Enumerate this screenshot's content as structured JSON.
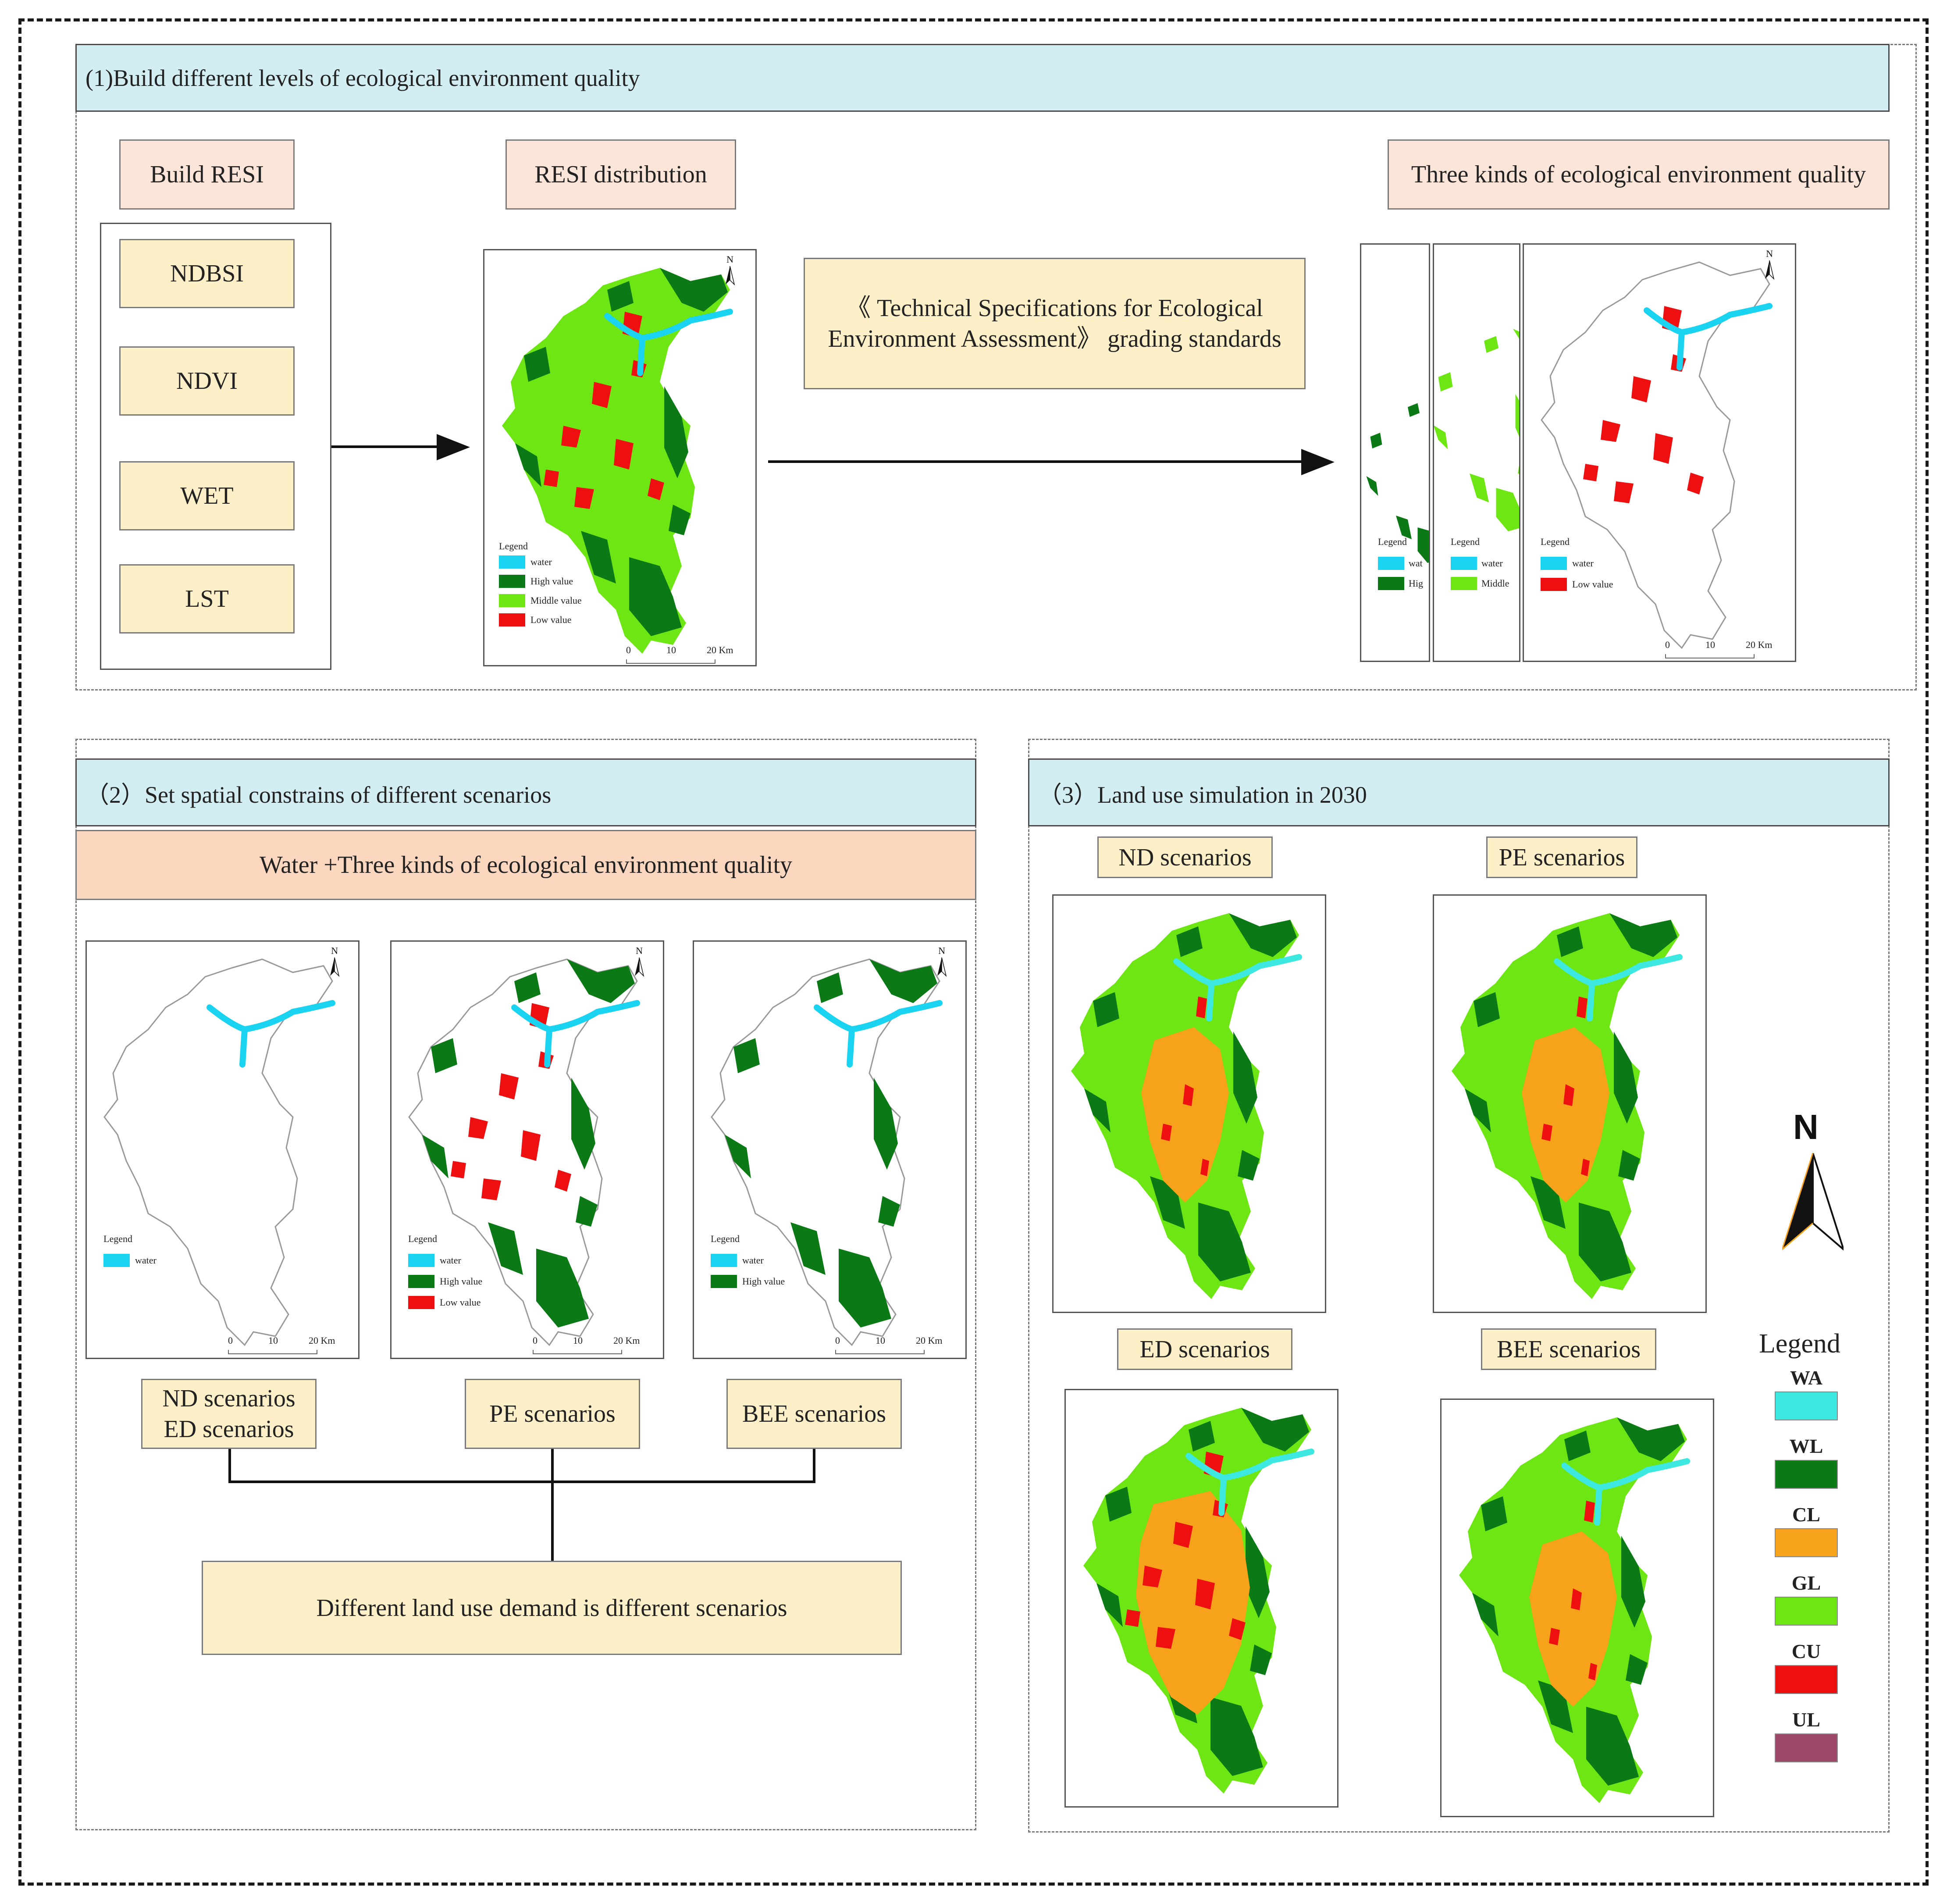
{
  "section1": {
    "title": "(1)Build different levels of ecological environment quality",
    "build_resi": "Build RESI",
    "indices": [
      "NDBSI",
      "NDVI",
      "WET",
      "LST"
    ],
    "resi_distribution": "RESI distribution",
    "spec_line1": "《 Technical Specifications for Ecological",
    "spec_line2": "Environment Assessment》  grading standards",
    "three_kinds": "Three kinds of ecological environment quality"
  },
  "section2": {
    "title": "（2）Set spatial constrains of different scenarios",
    "water_three": "Water +Three kinds of ecological environment quality",
    "nd_ed_line1": "ND scenarios",
    "nd_ed_line2": "ED scenarios",
    "pe": "PE scenarios",
    "bee": "BEE scenarios",
    "demand": "Different land use demand is different scenarios"
  },
  "section3": {
    "title": "（3）Land use simulation in 2030",
    "nd": "ND scenarios",
    "pe": "PE scenarios",
    "ed": "ED scenarios",
    "bee": "BEE scenarios",
    "north": "N",
    "legend_title": "Legend",
    "legend": [
      {
        "code": "WA",
        "color": "#3de8e0"
      },
      {
        "code": "WL",
        "color": "#0b7a16"
      },
      {
        "code": "CL",
        "color": "#f6a21a"
      },
      {
        "code": "GL",
        "color": "#6ee614"
      },
      {
        "code": "CU",
        "color": "#ee1010"
      },
      {
        "code": "UL",
        "color": "#9c4668"
      }
    ]
  },
  "map_text": {
    "legend": "Legend",
    "water": "water",
    "high": "High value",
    "middle": "Middle value",
    "low": "Low value",
    "wat_cut": "wat",
    "hig_cut": "Hig",
    "middle_cut": "Middle",
    "n": "N",
    "s0": "0",
    "s10": "10",
    "s20": "20 Km"
  },
  "colors": {
    "water": "#1ad3f0",
    "high": "#0b7a16",
    "middle": "#6ee614",
    "low": "#ee1010",
    "cropland": "#f6a21a"
  }
}
